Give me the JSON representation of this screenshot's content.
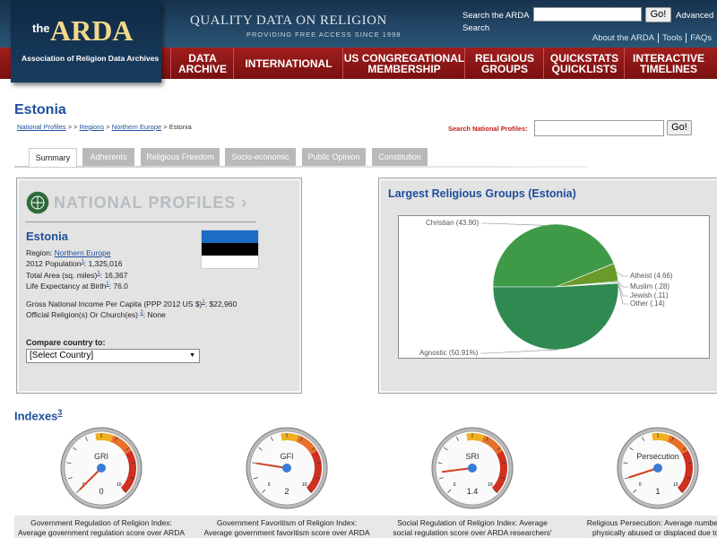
{
  "header": {
    "logo_small": "the",
    "logo_name": "ARDA",
    "logo_subtitle": "Association of Religion Data Archives",
    "tagline": "QUALITY DATA ON RELIGION",
    "subtagline": "PROVIDING FREE ACCESS SINCE 1998",
    "search_label": "Search the ARDA",
    "search_button": "Go!",
    "advanced_link": [
      "Advanced",
      "Search"
    ],
    "top_links": [
      "About the ARDA",
      "Tools",
      "FAQs"
    ]
  },
  "nav": [
    {
      "lines": [
        "DATA",
        "ARCHIVE"
      ]
    },
    {
      "lines": [
        "INTERNATIONAL"
      ]
    },
    {
      "lines": [
        "US CONGREGATIONAL",
        "MEMBERSHIP"
      ]
    },
    {
      "lines": [
        "RELIGIOUS",
        "GROUPS"
      ]
    },
    {
      "lines": [
        "QUICKSTATS",
        "QUICKLISTS"
      ]
    },
    {
      "lines": [
        "INTERACTIVE",
        "TIMELINES"
      ]
    }
  ],
  "page": {
    "title": "Estonia",
    "breadcrumb": [
      "National Profiles",
      " > > ",
      "Regions",
      " > ",
      "Northern Europe",
      " > Estonia"
    ],
    "search_label": "Search National Profiles:",
    "search_button": "Go!",
    "tabs": [
      "Summary",
      "Adherents",
      "Religious Freedom",
      "Socio-economic",
      "Public Opinion",
      "Constitution"
    ]
  },
  "profile": {
    "banner": "NATIONAL PROFILES ›",
    "country": "Estonia",
    "region_label": "Region: ",
    "region": "Northern Europe",
    "facts": [
      {
        "label": "2012 Population",
        "note": "1",
        "value": ": 1,325,016"
      },
      {
        "label": "Total Area (sq. miles)",
        "note": "1",
        "value": ": 16,367"
      },
      {
        "label": "Life Expectancy at Birth",
        "note": "1",
        "value": ": 76.0"
      },
      {
        "label": "Gross National Income Per Capita (PPP 2012 US $)",
        "note": "1",
        "value": ": $22,960"
      },
      {
        "label": "Official Religion(s) Or Church(es) ",
        "note": "2",
        "value": ": None"
      }
    ],
    "compare_label": "Compare country to:",
    "compare_select": "[Select Country]"
  },
  "religion_chart": {
    "type": "pie",
    "title": "Largest Religious Groups (Estonia)",
    "slices": [
      {
        "label": "Christian (43.90)",
        "value": 43.9,
        "color": "#3f9a48"
      },
      {
        "label": "Atheist (4.66)",
        "value": 4.66,
        "color": "#6a9a2a"
      },
      {
        "label": "Muslim (.28)",
        "value": 0.28,
        "color": "#4f8f6a"
      },
      {
        "label": "Jewish (.11)",
        "value": 0.11,
        "color": "#3a6f8f"
      },
      {
        "label": "Other (.14)",
        "value": 0.14,
        "color": "#7a7a7a"
      },
      {
        "label": "Agnostic (50.91%)",
        "value": 50.91,
        "color": "#2f8a52"
      }
    ]
  },
  "indexes": {
    "title": "Indexes",
    "note": "3",
    "scale": {
      "min": 0,
      "max": 10
    },
    "gauges": [
      {
        "name": "GRI",
        "value": 0,
        "caption": [
          "Government Regulation of Religion Index:",
          "Average government regulation score over ARDA"
        ]
      },
      {
        "name": "GFI",
        "value": 2,
        "caption": [
          "Government Favoritism of Religion Index:",
          "Average government favoritism score over ARDA"
        ]
      },
      {
        "name": "SRI",
        "value": 1.4,
        "caption": [
          "Social Regulation of Religion Index: Average",
          "social regulation score over ARDA researchers'"
        ]
      },
      {
        "name": "Persecution",
        "value": 1,
        "caption": [
          "Religious Persecution: Average number of",
          "physically abused or displaced due to t"
        ]
      }
    ]
  }
}
